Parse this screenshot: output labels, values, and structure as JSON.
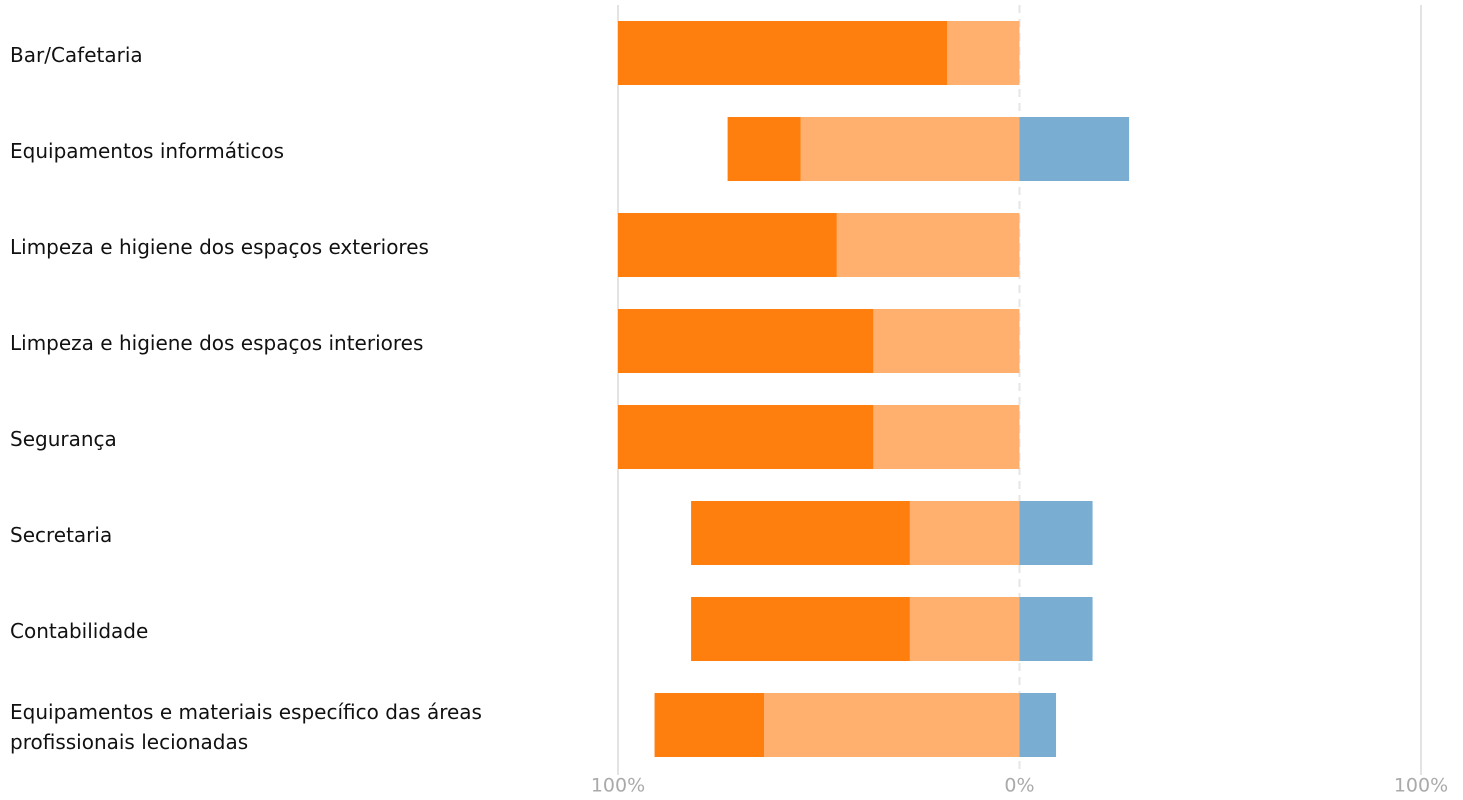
{
  "chart_data": {
    "type": "diverging-bar",
    "categories": [
      "Bar/Cafetaria",
      "Equipamentos informáticos",
      "Limpeza e higiene dos espaços exteriores",
      "Limpeza e higiene dos espaços interiores",
      "Segurança",
      "Secretaria",
      "Contabilidade",
      "Equipamentos e materiais específico das áreas profissionais lecionadas"
    ],
    "series": [
      {
        "color": "#ffb06e",
        "values": [
          -18,
          -54.5,
          -45.5,
          -36.4,
          -36.4,
          -27.3,
          -27.3,
          -63.6
        ]
      },
      {
        "color": "#ff7f0e",
        "values": [
          -82,
          -18.2,
          -54.5,
          -63.6,
          -63.6,
          -54.5,
          -54.5,
          -27.3
        ]
      },
      {
        "color": "#79aed2",
        "values": [
          0,
          27.3,
          0,
          0,
          0,
          18.2,
          18.2,
          9.1
        ]
      }
    ],
    "xlim": [
      -100,
      100
    ],
    "xticks": [
      {
        "value": -100,
        "label": "100%"
      },
      {
        "value": 0,
        "label": "0%"
      },
      {
        "value": 100,
        "label": "100%"
      }
    ],
    "grid": true
  }
}
